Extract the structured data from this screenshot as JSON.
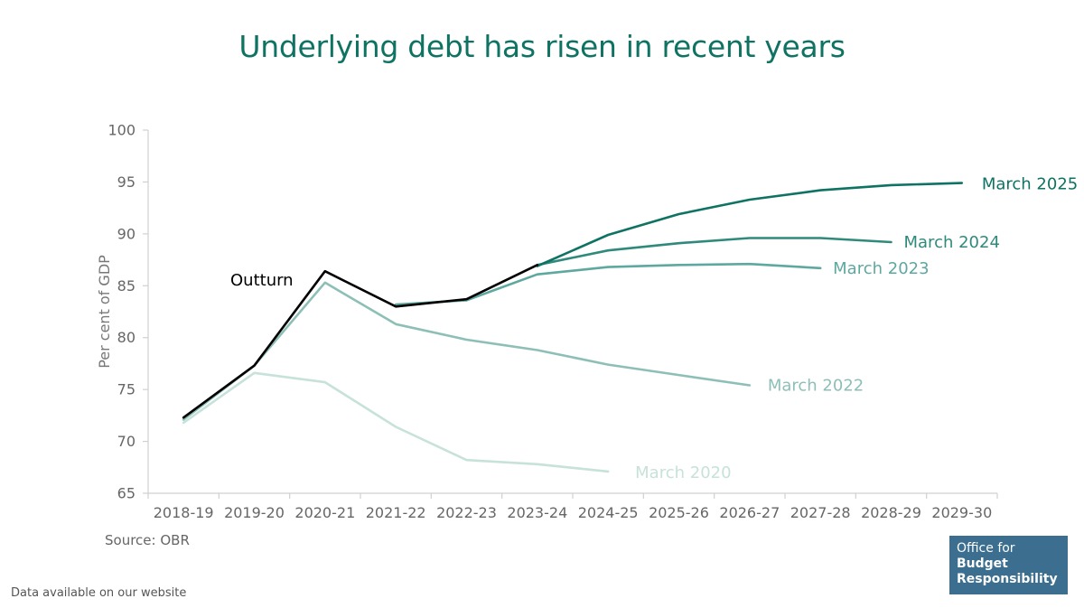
{
  "chart_data": {
    "type": "line",
    "title": "Underlying debt has risen in recent years",
    "ylabel": "Per cent of GDP",
    "xlabel": "",
    "ylim": [
      65,
      100
    ],
    "yticks": [
      65,
      70,
      75,
      80,
      85,
      90,
      95,
      100
    ],
    "categories": [
      "2018-19",
      "2019-20",
      "2020-21",
      "2021-22",
      "2022-23",
      "2023-24",
      "2024-25",
      "2025-26",
      "2026-27",
      "2027-28",
      "2028-29",
      "2029-30"
    ],
    "grid": false,
    "legend": "inline labels at line ends",
    "series": [
      {
        "name": "March 2020",
        "color": "#c7e2da",
        "values": [
          71.8,
          76.6,
          75.7,
          71.4,
          68.2,
          67.8,
          67.1,
          null,
          null,
          null,
          null,
          null
        ]
      },
      {
        "name": "March 2022",
        "color": "#8dbfb7",
        "values": [
          72.1,
          77.3,
          85.3,
          81.3,
          79.8,
          78.8,
          77.4,
          76.4,
          75.4,
          null,
          null,
          null
        ]
      },
      {
        "name": "March 2023",
        "color": "#5ea89f",
        "values": [
          null,
          null,
          null,
          83.2,
          83.6,
          86.1,
          86.8,
          87.0,
          87.1,
          86.7,
          null,
          null
        ]
      },
      {
        "name": "March 2024",
        "color": "#2f8a7c",
        "values": [
          null,
          null,
          null,
          null,
          null,
          87.0,
          88.4,
          89.1,
          89.6,
          89.6,
          89.2,
          null
        ]
      },
      {
        "name": "March 2025",
        "color": "#0e7363",
        "values": [
          null,
          null,
          null,
          null,
          null,
          86.9,
          89.9,
          91.9,
          93.3,
          94.2,
          94.7,
          94.9
        ]
      },
      {
        "name": "Outturn",
        "color": "#000000",
        "values": [
          72.3,
          77.3,
          86.4,
          83.0,
          83.7,
          87.0,
          null,
          null,
          null,
          null,
          null,
          null
        ]
      }
    ]
  },
  "source_note": "Source: OBR",
  "footer_note": "Data available on our website",
  "logo": {
    "line1": "Office for",
    "line2": "Budget",
    "line3": "Responsibility",
    "color": "#3b6e8f"
  }
}
